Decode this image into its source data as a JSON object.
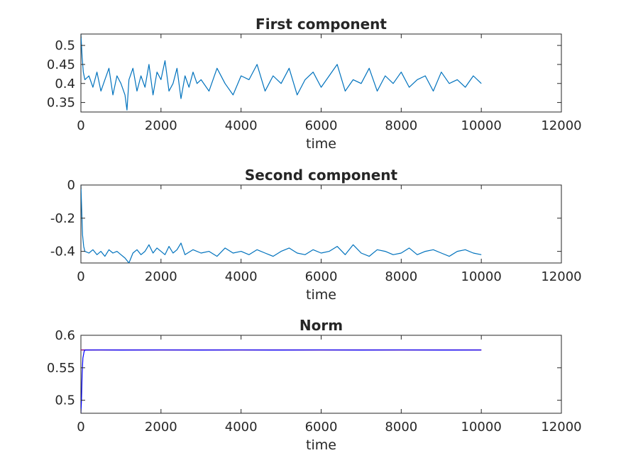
{
  "chart_data": [
    {
      "type": "line",
      "title": "First component",
      "xlabel": "time",
      "ylabel": "",
      "xlim": [
        0,
        12000
      ],
      "ylim": [
        0.325,
        0.53
      ],
      "xticks": [
        "0",
        "2000",
        "4000",
        "6000",
        "8000",
        "10000",
        "12000"
      ],
      "yticks": [
        "0.35",
        "0.4",
        "0.45",
        "0.5"
      ],
      "grid": false,
      "series": [
        {
          "color": "#0072BD",
          "x": [
            0,
            30,
            60,
            100,
            200,
            300,
            400,
            500,
            600,
            700,
            800,
            900,
            1000,
            1100,
            1150,
            1200,
            1300,
            1400,
            1500,
            1600,
            1700,
            1800,
            1900,
            2000,
            2100,
            2200,
            2300,
            2400,
            2500,
            2600,
            2700,
            2800,
            2900,
            3000,
            3200,
            3400,
            3600,
            3800,
            4000,
            4200,
            4400,
            4600,
            4800,
            5000,
            5200,
            5400,
            5600,
            5800,
            6000,
            6200,
            6400,
            6600,
            6800,
            7000,
            7200,
            7400,
            7600,
            7800,
            8000,
            8200,
            8400,
            8600,
            8800,
            9000,
            9200,
            9400,
            9600,
            9800,
            10000
          ],
          "y": [
            0.53,
            0.47,
            0.43,
            0.41,
            0.42,
            0.39,
            0.43,
            0.38,
            0.41,
            0.44,
            0.37,
            0.42,
            0.4,
            0.37,
            0.33,
            0.41,
            0.44,
            0.38,
            0.42,
            0.39,
            0.45,
            0.37,
            0.43,
            0.41,
            0.46,
            0.38,
            0.4,
            0.44,
            0.36,
            0.42,
            0.39,
            0.43,
            0.4,
            0.41,
            0.38,
            0.44,
            0.4,
            0.37,
            0.42,
            0.41,
            0.45,
            0.38,
            0.42,
            0.4,
            0.44,
            0.37,
            0.41,
            0.43,
            0.39,
            0.42,
            0.45,
            0.38,
            0.41,
            0.4,
            0.44,
            0.38,
            0.42,
            0.4,
            0.43,
            0.39,
            0.41,
            0.42,
            0.38,
            0.43,
            0.4,
            0.41,
            0.39,
            0.42,
            0.4
          ]
        }
      ]
    },
    {
      "type": "line",
      "title": "Second component",
      "xlabel": "time",
      "ylabel": "",
      "xlim": [
        0,
        12000
      ],
      "ylim": [
        -0.47,
        0
      ],
      "xticks": [
        "0",
        "2000",
        "4000",
        "6000",
        "8000",
        "10000",
        "12000"
      ],
      "yticks": [
        "0",
        "-0.2",
        "-0.4"
      ],
      "grid": false,
      "series": [
        {
          "color": "#0072BD",
          "x": [
            0,
            20,
            40,
            70,
            100,
            200,
            300,
            400,
            500,
            600,
            700,
            800,
            900,
            1000,
            1100,
            1200,
            1300,
            1400,
            1500,
            1600,
            1700,
            1800,
            1900,
            2000,
            2100,
            2200,
            2300,
            2400,
            2500,
            2600,
            2800,
            3000,
            3200,
            3400,
            3600,
            3800,
            4000,
            4200,
            4400,
            4600,
            4800,
            5000,
            5200,
            5400,
            5600,
            5800,
            6000,
            6200,
            6400,
            6600,
            6800,
            7000,
            7200,
            7400,
            7600,
            7800,
            8000,
            8200,
            8400,
            8600,
            8800,
            9000,
            9200,
            9400,
            9600,
            9800,
            10000
          ],
          "y": [
            0,
            -0.15,
            -0.3,
            -0.37,
            -0.4,
            -0.41,
            -0.39,
            -0.42,
            -0.4,
            -0.43,
            -0.39,
            -0.41,
            -0.4,
            -0.42,
            -0.44,
            -0.47,
            -0.41,
            -0.39,
            -0.42,
            -0.4,
            -0.36,
            -0.41,
            -0.38,
            -0.4,
            -0.42,
            -0.37,
            -0.41,
            -0.39,
            -0.35,
            -0.42,
            -0.39,
            -0.41,
            -0.4,
            -0.43,
            -0.38,
            -0.41,
            -0.4,
            -0.42,
            -0.39,
            -0.41,
            -0.43,
            -0.4,
            -0.38,
            -0.41,
            -0.42,
            -0.39,
            -0.41,
            -0.4,
            -0.37,
            -0.42,
            -0.36,
            -0.41,
            -0.43,
            -0.39,
            -0.4,
            -0.42,
            -0.41,
            -0.38,
            -0.42,
            -0.4,
            -0.39,
            -0.41,
            -0.43,
            -0.4,
            -0.39,
            -0.41,
            -0.42
          ]
        }
      ]
    },
    {
      "type": "line",
      "title": "Norm",
      "xlabel": "time",
      "ylabel": "",
      "xlim": [
        0,
        12000
      ],
      "ylim": [
        0.48,
        0.6
      ],
      "xticks": [
        "0",
        "2000",
        "4000",
        "6000",
        "8000",
        "10000",
        "12000"
      ],
      "yticks": [
        "0.5",
        "0.55",
        "0.6"
      ],
      "grid": false,
      "series": [
        {
          "color": "#D95319",
          "x": [
            0,
            10000
          ],
          "y": [
            0.5773,
            0.5773
          ]
        },
        {
          "color": "#8B0A8B",
          "x": [
            0,
            10000
          ],
          "y": [
            0.5775,
            0.5775
          ]
        },
        {
          "color": "#0000FF",
          "x": [
            0,
            15,
            30,
            50,
            80,
            100,
            500,
            1000,
            2000,
            3000,
            4000,
            5000,
            6000,
            7000,
            8000,
            9000,
            10000
          ],
          "y": [
            0.48,
            0.5,
            0.54,
            0.565,
            0.575,
            0.5772,
            0.5774,
            0.5772,
            0.5774,
            0.5772,
            0.5774,
            0.5772,
            0.5774,
            0.5772,
            0.5774,
            0.5772,
            0.5773
          ]
        }
      ]
    }
  ]
}
